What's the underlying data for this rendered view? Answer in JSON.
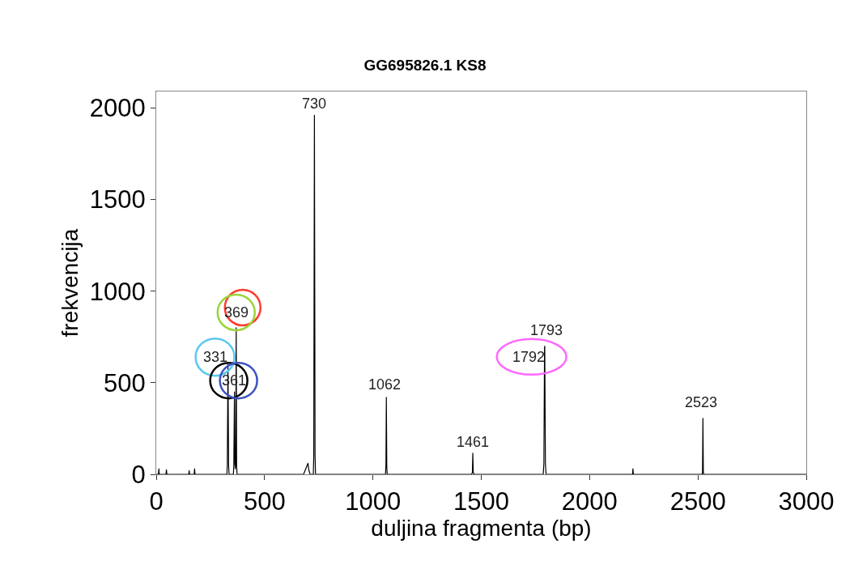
{
  "chart_data": {
    "type": "line",
    "title": "GG695826.1 KS8",
    "xlabel": "duljina fragmenta (bp)",
    "ylabel": "frekvencija",
    "x": [
      0,
      10,
      12,
      14,
      30,
      45,
      47,
      49,
      60,
      120,
      150,
      152,
      154,
      170,
      175,
      177,
      179,
      200,
      300,
      326,
      328,
      331,
      334,
      336,
      356,
      358,
      361,
      363,
      365,
      367,
      369,
      371,
      373,
      400,
      500,
      680,
      690,
      700,
      705,
      710,
      725,
      727,
      730,
      733,
      735,
      800,
      1000,
      1058,
      1060,
      1062,
      1064,
      1066,
      1200,
      1455,
      1459,
      1461,
      1463,
      1467,
      1600,
      1786,
      1789,
      1792,
      1793,
      1796,
      1799,
      2000,
      2198,
      2200,
      2202,
      2400,
      2519,
      2521,
      2523,
      2525,
      2527,
      3000
    ],
    "series": [
      {
        "color": "#000000",
        "values": [
          0,
          0,
          30,
          0,
          0,
          0,
          25,
          0,
          0,
          0,
          0,
          20,
          0,
          0,
          0,
          30,
          0,
          0,
          0,
          0,
          50,
          600,
          50,
          0,
          0,
          50,
          450,
          60,
          30,
          60,
          800,
          50,
          0,
          0,
          0,
          0,
          30,
          60,
          20,
          0,
          0,
          100,
          1960,
          100,
          0,
          0,
          0,
          0,
          50,
          420,
          40,
          0,
          0,
          0,
          10,
          115,
          10,
          0,
          0,
          0,
          60,
          690,
          700,
          60,
          0,
          0,
          0,
          30,
          0,
          0,
          0,
          10,
          305,
          10,
          0,
          0
        ]
      }
    ],
    "xlim": [
      0,
      3000
    ],
    "ylim": [
      0,
      2090
    ],
    "xticks": [
      0,
      500,
      1000,
      1500,
      2000,
      2500,
      3000
    ],
    "yticks": [
      0,
      500,
      1000,
      1500,
      2000
    ],
    "line_style": "solid",
    "marker": "none",
    "annotations": [
      {
        "text": "730",
        "x": 730,
        "y": 1960
      },
      {
        "text": "369",
        "x": 369,
        "y": 800
      },
      {
        "text": "331",
        "x": 331,
        "y": 600
      },
      {
        "text": "361",
        "x": 361,
        "y": 450
      },
      {
        "text": "1062",
        "x": 1062,
        "y": 420
      },
      {
        "text": "1461",
        "x": 1461,
        "y": 115
      },
      {
        "text": "1793",
        "x": 1793,
        "y": 700
      },
      {
        "text": "1792",
        "x": 1792,
        "y": 690
      },
      {
        "text": "2523",
        "x": 2523,
        "y": 305
      }
    ]
  }
}
